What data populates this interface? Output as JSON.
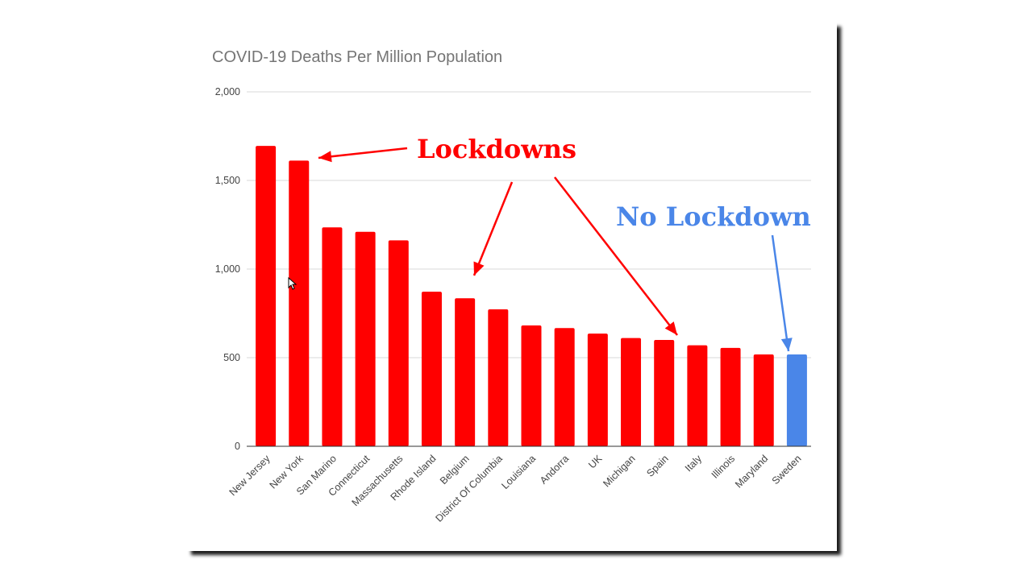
{
  "colors": {
    "lockdown": "#ff0000",
    "no_lockdown": "#4a86e8",
    "grid": "#d9d9d9",
    "axis": "#333333"
  },
  "annotations": {
    "lockdowns": "Lockdowns",
    "no_lockdown": "No Lockdown"
  },
  "chart_data": {
    "type": "bar",
    "title": "COVID-19 Deaths Per Million Population",
    "xlabel": "",
    "ylabel": "",
    "ylim": [
      0,
      2000
    ],
    "yticks": [
      0,
      500,
      1000,
      1500,
      2000
    ],
    "ytick_labels": [
      "0",
      "500",
      "1,000",
      "1,500",
      "2,000"
    ],
    "categories": [
      "New Jersey",
      "New York",
      "San Marino",
      "Connecticut",
      "Massachusetts",
      "Rhode Island",
      "Belgium",
      "District Of Columbia",
      "Louisiana",
      "Andorra",
      "UK",
      "Michigan",
      "Spain",
      "Italy",
      "Illinois",
      "Maryland",
      "Sweden"
    ],
    "values": [
      1695,
      1612,
      1235,
      1210,
      1162,
      872,
      835,
      773,
      682,
      667,
      636,
      611,
      600,
      570,
      555,
      518,
      518
    ],
    "groups": [
      "lockdown",
      "lockdown",
      "lockdown",
      "lockdown",
      "lockdown",
      "lockdown",
      "lockdown",
      "lockdown",
      "lockdown",
      "lockdown",
      "lockdown",
      "lockdown",
      "lockdown",
      "lockdown",
      "lockdown",
      "lockdown",
      "no_lockdown"
    ]
  }
}
